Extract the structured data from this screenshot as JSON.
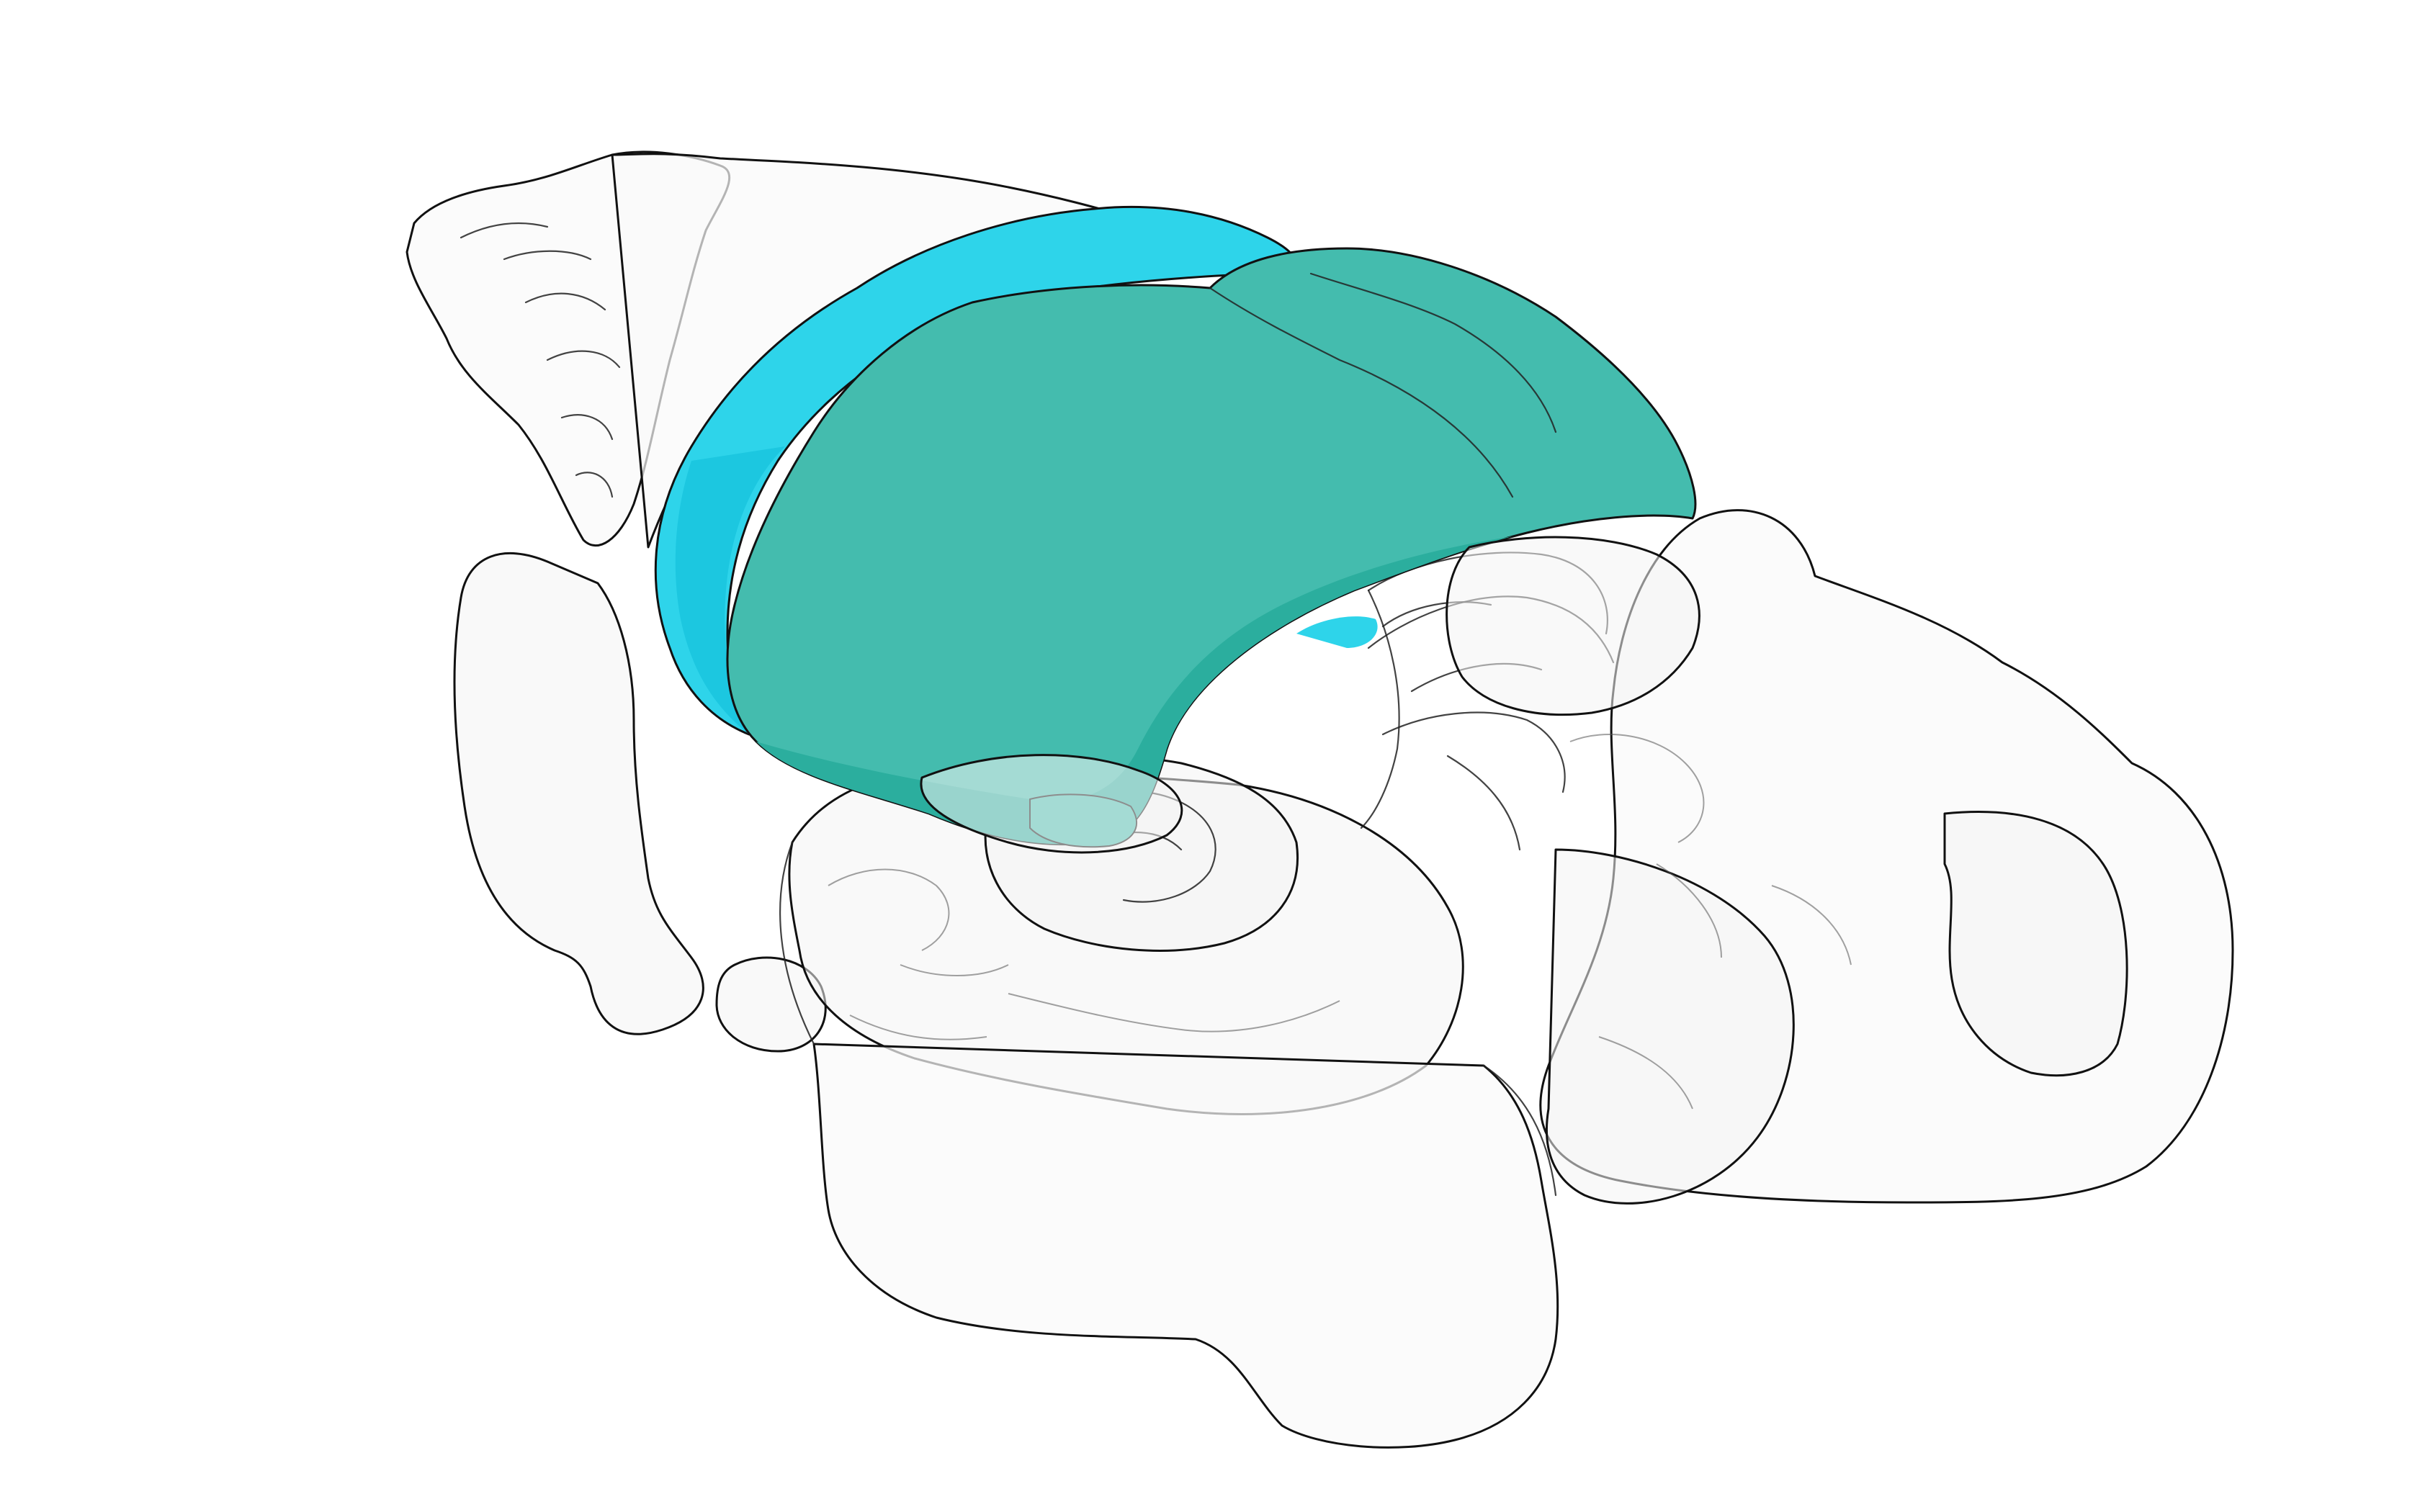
{
  "scene": {
    "background": "#ffffff",
    "outline_color": "#111111",
    "ghost_color": "#f4f4f4",
    "regions": [
      {
        "id": "region-cyan",
        "color": "#2ed4ea",
        "shade": "#1cc7e0"
      },
      {
        "id": "region-teal",
        "color": "#44bcae",
        "shade": "#2bae9e"
      }
    ]
  }
}
